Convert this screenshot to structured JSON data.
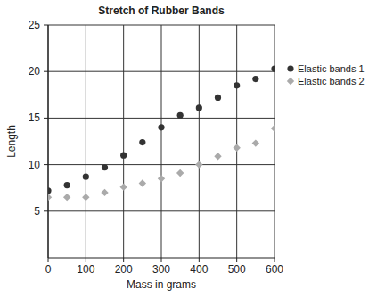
{
  "chart_data": {
    "type": "scatter",
    "title": "Stretch of Rubber Bands",
    "x_label": "Mass in grams",
    "y_label": "Length",
    "x": [
      0,
      50,
      100,
      150,
      200,
      250,
      300,
      350,
      400,
      450,
      500,
      550,
      600
    ],
    "series": [
      {
        "name": "Elastic bands 1",
        "color": "#333333",
        "marker": "circle",
        "values": [
          7.2,
          7.8,
          8.7,
          9.7,
          11.0,
          12.4,
          14.0,
          15.3,
          16.1,
          17.2,
          18.5,
          19.2,
          20.3
        ]
      },
      {
        "name": "Elastic bands 2",
        "color": "#aaaaaa",
        "marker": "diamond",
        "values": [
          6.5,
          6.5,
          6.5,
          7.0,
          7.6,
          8.0,
          8.5,
          9.1,
          10.0,
          10.9,
          11.8,
          12.3,
          13.9
        ]
      }
    ],
    "xlim": [
      0,
      600
    ],
    "xticks": [
      0,
      100,
      200,
      300,
      400,
      500,
      600
    ],
    "ylim": [
      0,
      25
    ],
    "yticks": [
      5,
      10,
      15,
      20,
      25
    ],
    "grid": true,
    "legend": "upper right"
  }
}
